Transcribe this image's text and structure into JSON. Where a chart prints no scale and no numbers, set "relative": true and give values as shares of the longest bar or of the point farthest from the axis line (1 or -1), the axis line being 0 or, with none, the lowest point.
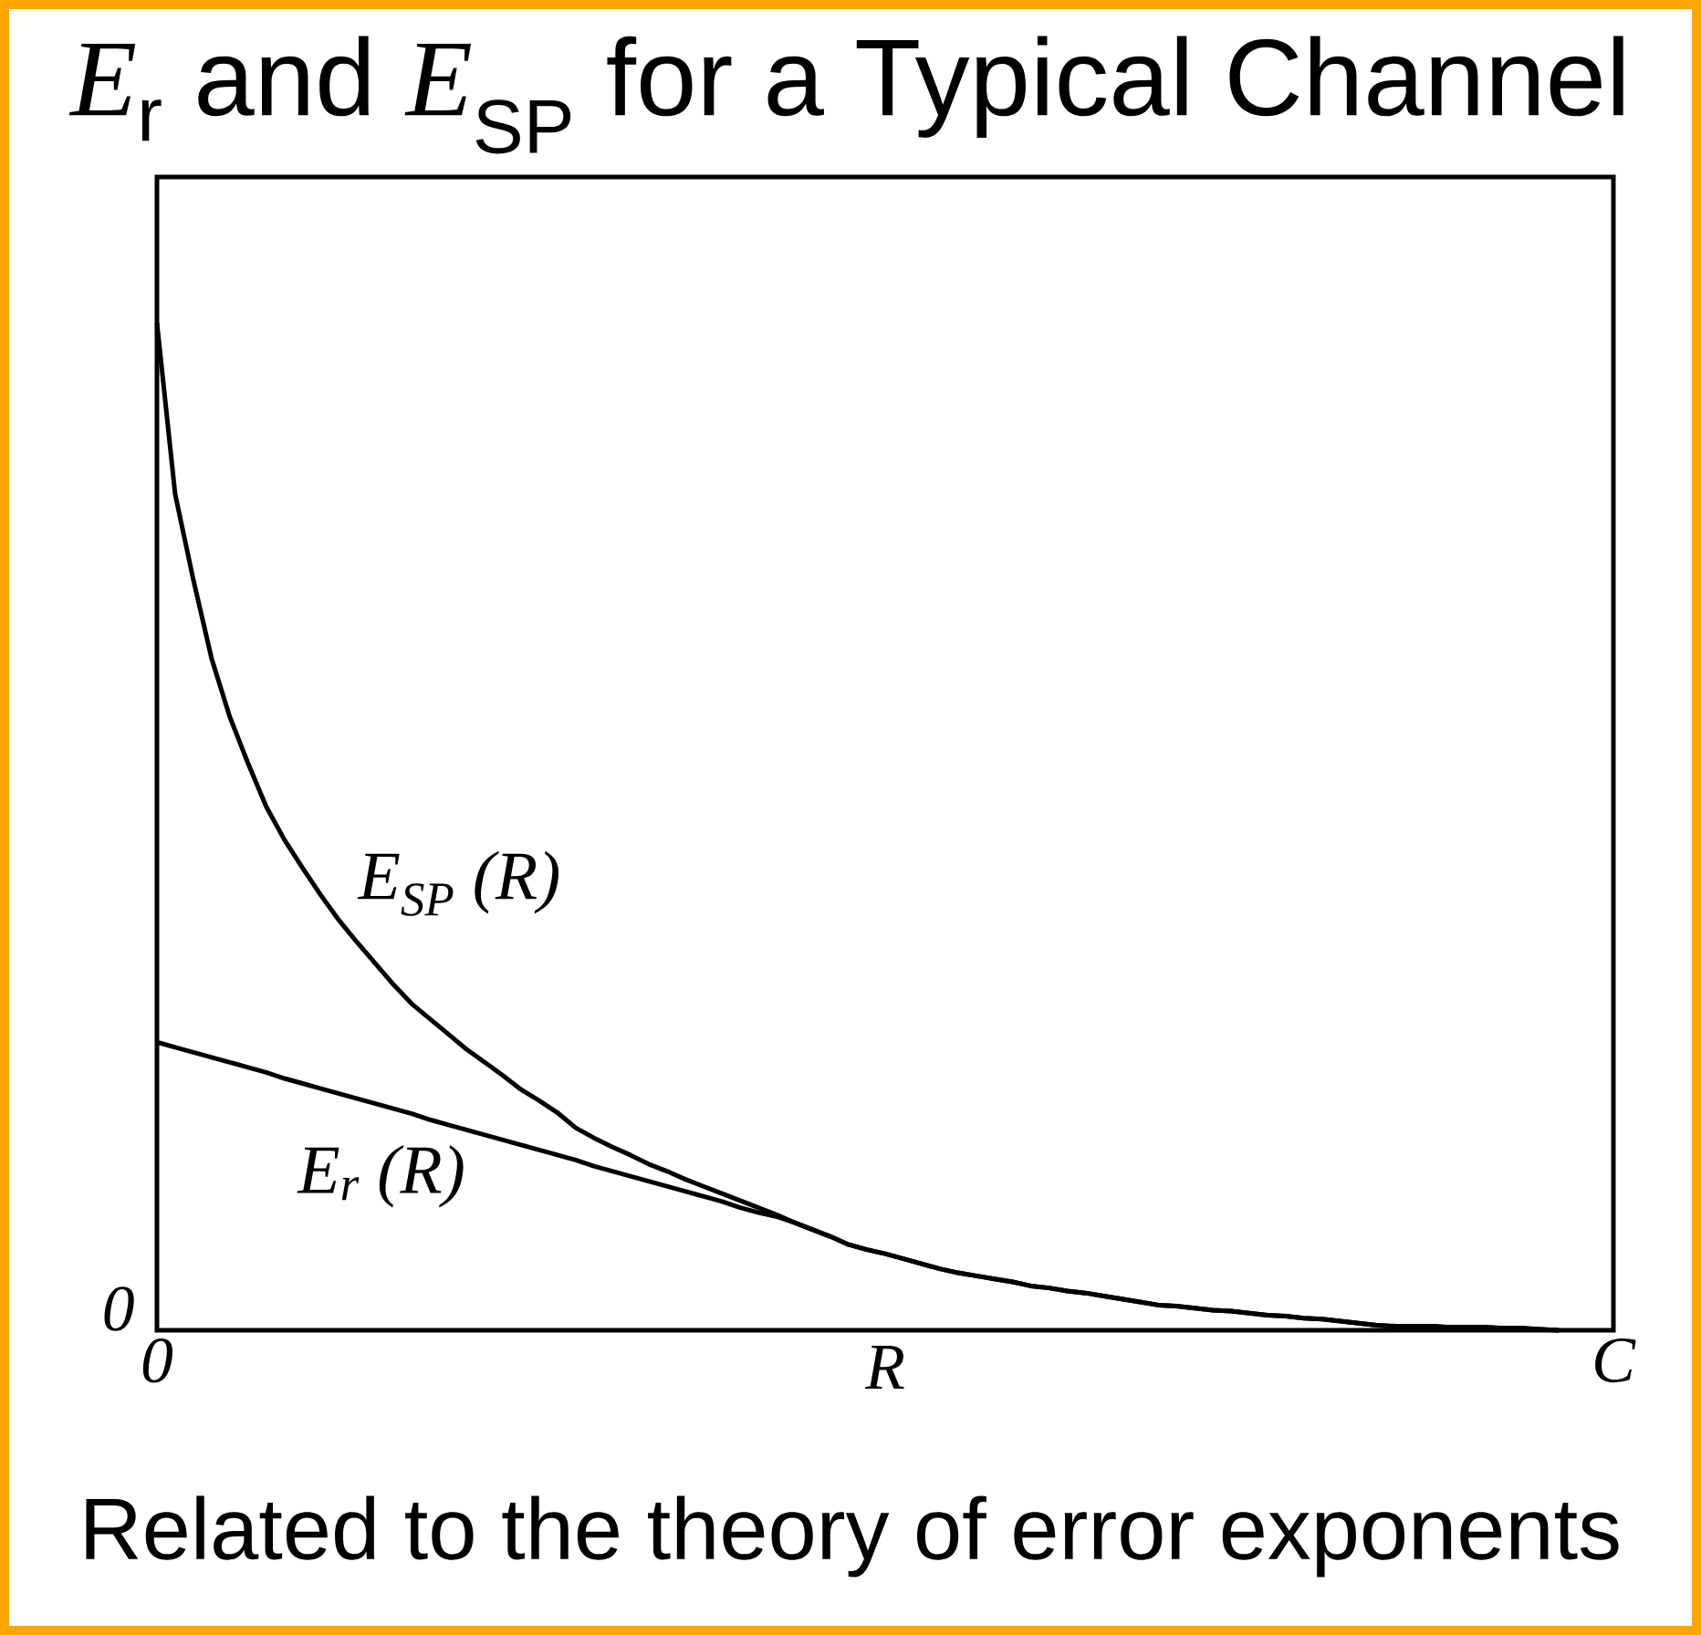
{
  "chart_data": {
    "type": "line",
    "title": "*E*$_{r}$ and *E*$_{SP}$ for a Typical Channel",
    "xlabel": "R",
    "annotations": [
      "0",
      "Related to the theory of error exponents"
    ],
    "relative": true,
    "categories": [
      "0",
      null,
      null,
      null,
      null,
      null,
      null,
      null,
      null,
      null,
      null,
      null,
      null,
      null,
      null,
      null,
      null,
      null,
      null,
      null,
      null,
      null,
      null,
      null,
      null,
      null,
      null,
      null,
      null,
      null,
      null,
      null,
      null,
      null,
      null,
      null,
      null,
      null,
      null,
      null,
      null,
      null,
      null,
      null,
      null,
      null,
      null,
      null,
      null,
      null,
      null,
      null,
      null,
      null,
      null,
      null,
      null,
      null,
      null,
      null,
      null,
      null,
      null,
      null,
      null,
      null,
      null,
      null,
      null,
      null,
      null,
      null,
      null,
      null,
      null,
      null,
      null,
      null,
      null,
      null,
      "C"
    ],
    "series": [
      {
        "name": "E$_{SP}$ (R)",
        "color": "#000000",
        "values": [
          1,
          0.83,
          0.745,
          0.667,
          0.609,
          0.563,
          0.52,
          0.487,
          0.459,
          0.432,
          0.407,
          0.385,
          0.364,
          0.343,
          0.324,
          0.309,
          0.294,
          0.279,
          0.266,
          0.253,
          0.239,
          0.228,
          0.216,
          0.201,
          0.191,
          0.182,
          0.174,
          0.165,
          0.158,
          0.15,
          0.143,
          0.136,
          0.129,
          0.122,
          0.115,
          0.107,
          0.1,
          0.093,
          0.085,
          0.08,
          0.076,
          0.071,
          0.066,
          0.061,
          0.057,
          0.054,
          0.051,
          0.048,
          0.044,
          0.042,
          0.039,
          0.037,
          0.034,
          0.031,
          0.028,
          0.025,
          0.024,
          0.022,
          0.02,
          0.019,
          0.017,
          0.015,
          0.014,
          0.012,
          0.011,
          0.009,
          0.007,
          0.005,
          0.004,
          0.004,
          0.004,
          0.003,
          0.003,
          0.003,
          0.002,
          0.002,
          0.001,
          0,
          null,
          null,
          null
        ]
      },
      {
        "name": "E$_{r}$ (R)",
        "color": "#000000",
        "values": [
          0.286,
          0.281,
          0.276,
          0.271,
          0.266,
          0.261,
          0.256,
          0.25,
          0.245,
          0.24,
          0.235,
          0.23,
          0.225,
          0.22,
          0.215,
          0.209,
          0.204,
          0.199,
          0.194,
          0.189,
          0.184,
          0.179,
          0.174,
          0.169,
          0.163,
          0.158,
          0.153,
          0.148,
          0.143,
          0.138,
          0.133,
          0.128,
          0.122,
          0.117,
          0.113,
          0.107,
          0.1,
          0.093,
          0.085,
          0.08,
          0.076,
          0.071,
          0.066,
          0.061,
          0.057,
          0.054,
          0.051,
          0.048,
          0.044,
          0.042,
          0.039,
          0.037,
          0.034,
          0.031,
          0.028,
          0.025,
          0.024,
          0.022,
          0.02,
          0.019,
          0.017,
          0.015,
          0.014,
          0.012,
          0.011,
          0.009,
          0.007,
          0.005,
          0.004,
          0.004,
          0.004,
          0.003,
          0.003,
          0.003,
          0.002,
          0.002,
          0.001,
          0,
          null,
          null,
          null
        ]
      }
    ]
  }
}
